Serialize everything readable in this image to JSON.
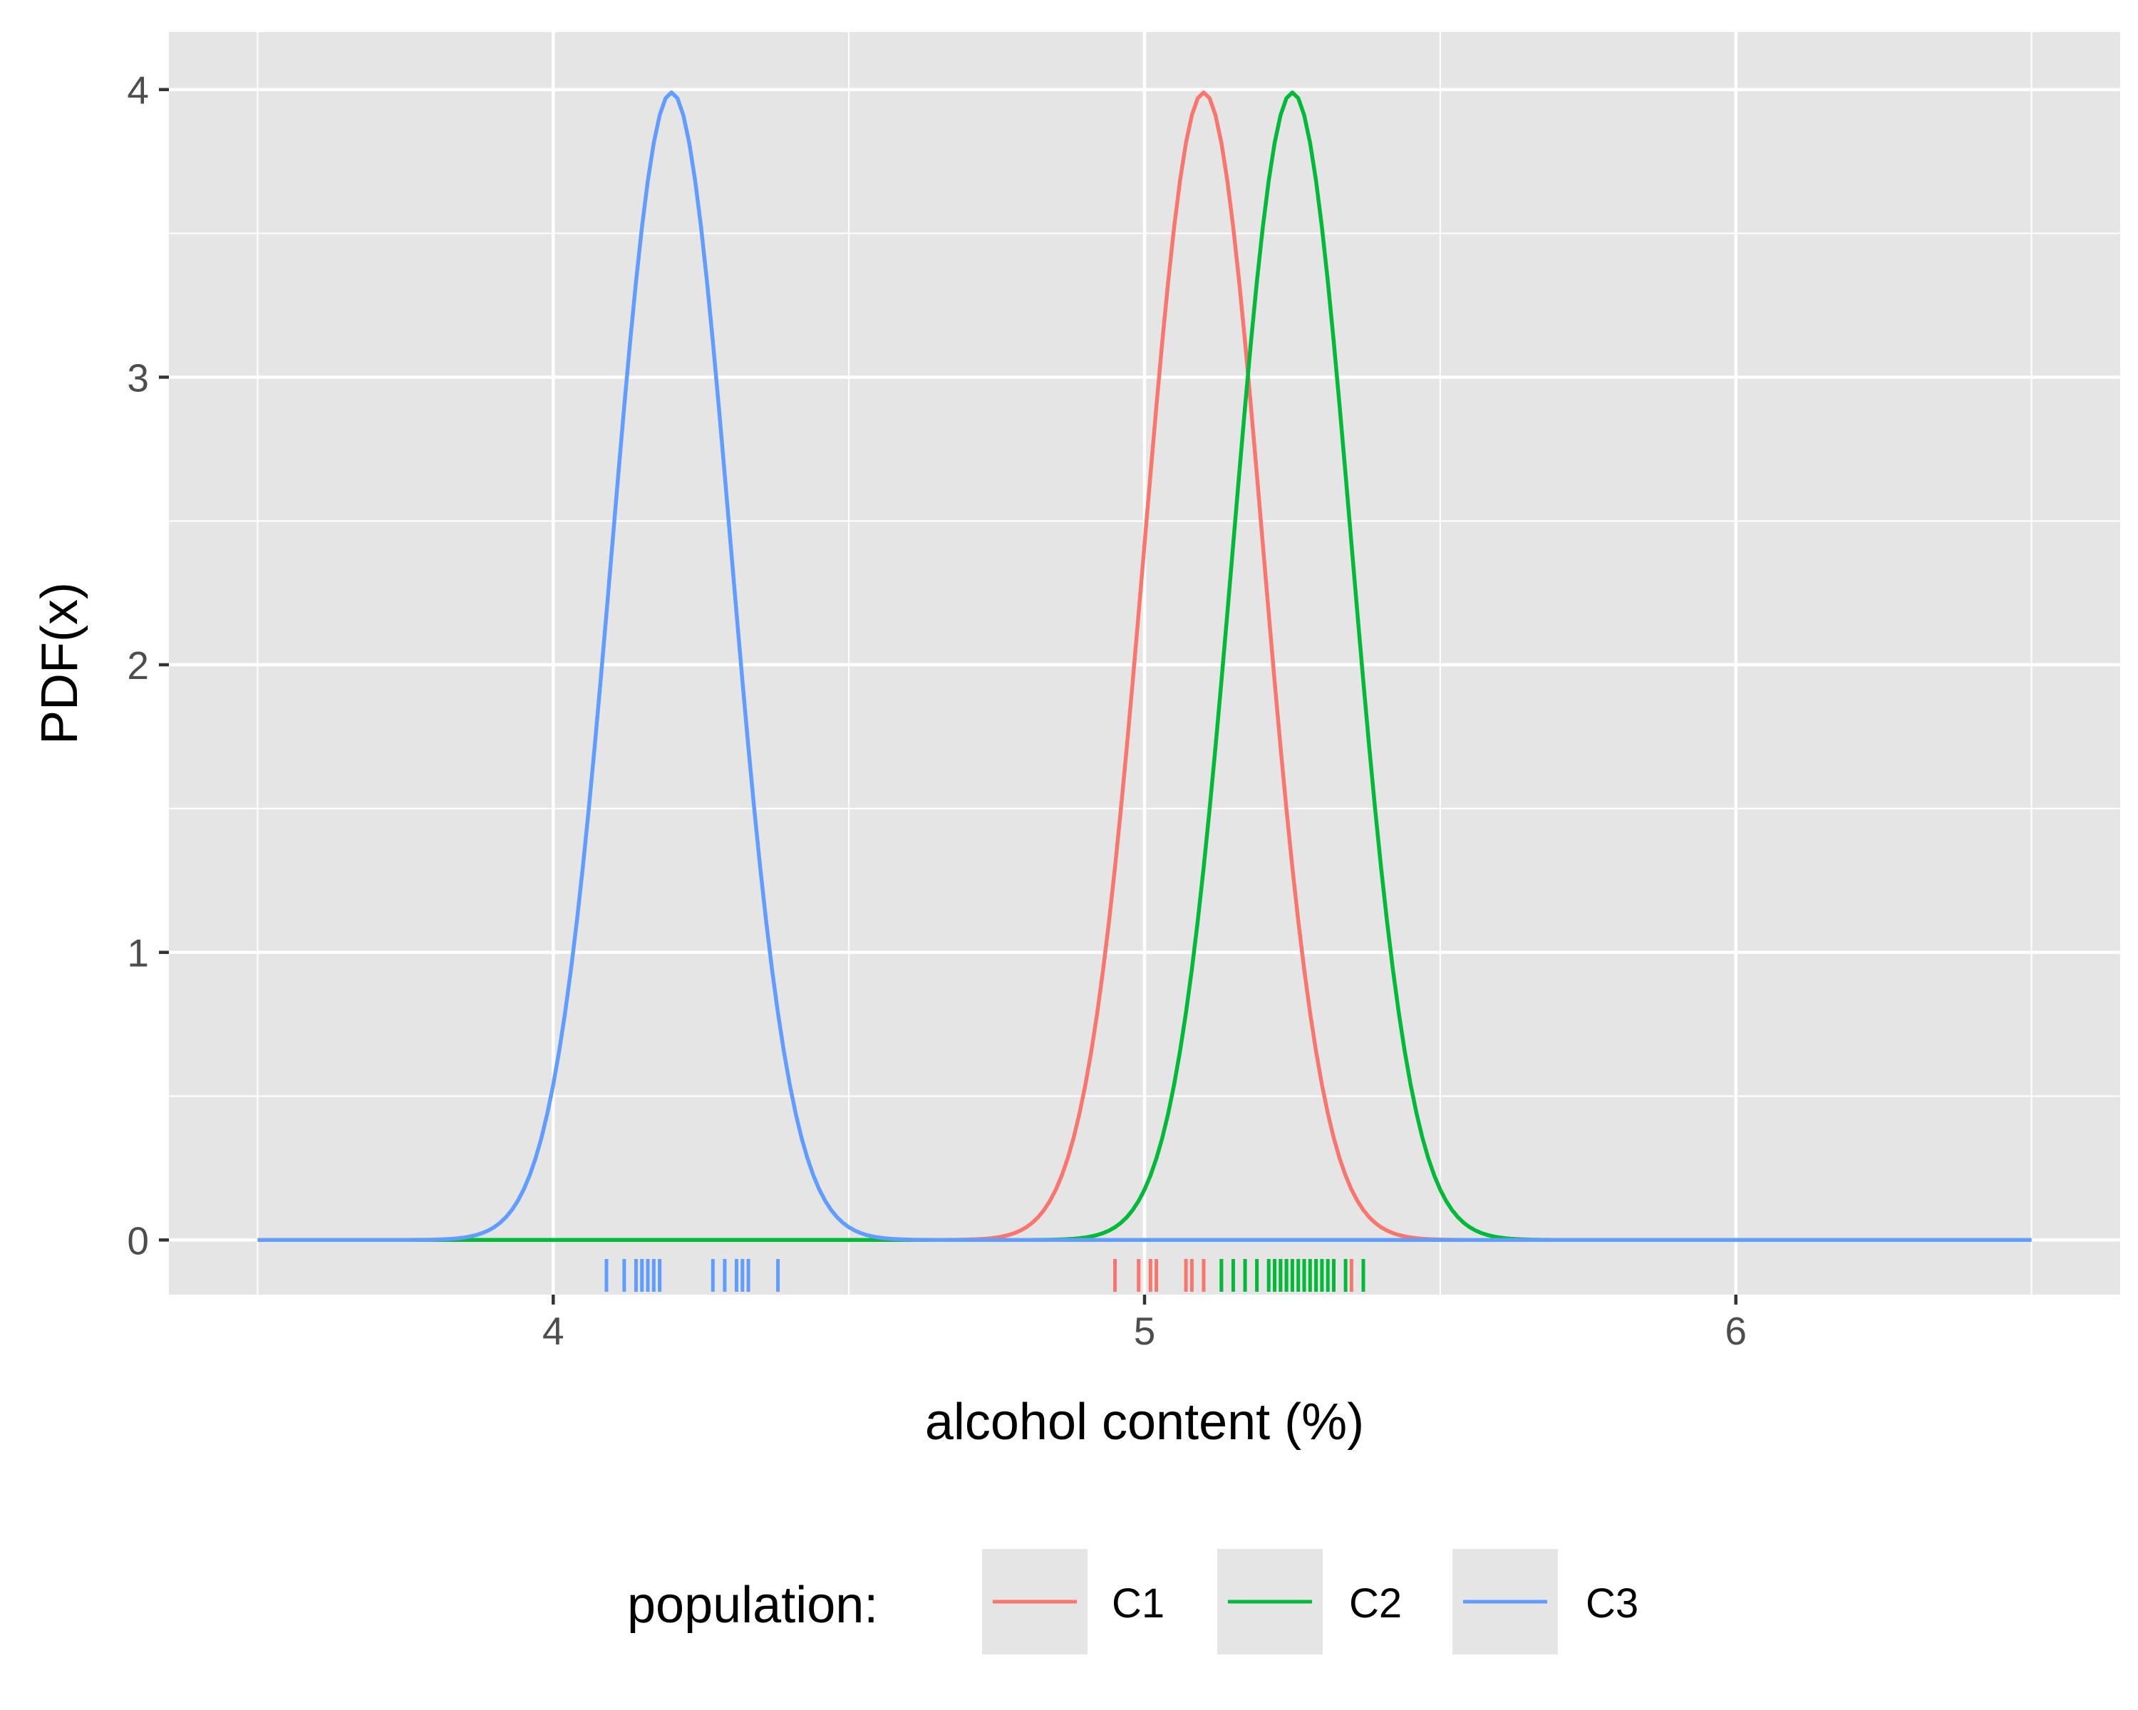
{
  "chart_data": {
    "type": "line",
    "title": "",
    "xlabel": "alcohol content (%)",
    "ylabel": "PDF(x)",
    "xlim": [
      3.35,
      6.65
    ],
    "ylim": [
      -0.19,
      4.2
    ],
    "x_domain": [
      3.5,
      6.5
    ],
    "x_major_ticks": [
      4,
      5,
      6
    ],
    "x_tick_labels": [
      "4",
      "5",
      "6"
    ],
    "x_minor_ticks": [
      3.5,
      4.5,
      5.5,
      6.5
    ],
    "y_major_ticks": [
      0,
      1,
      2,
      3,
      4
    ],
    "y_tick_labels": [
      "0",
      "1",
      "2",
      "3",
      "4"
    ],
    "y_minor_ticks": [
      0.5,
      1.5,
      2.5,
      3.5
    ],
    "grid": true,
    "panel_background": "#e5e5e5",
    "legend": {
      "title": "population:",
      "position": "bottom",
      "entries": [
        "C1",
        "C2",
        "C3"
      ]
    },
    "series": [
      {
        "name": "C1",
        "color": "#f8766d",
        "distribution": "normal",
        "mean": 5.1,
        "sd": 0.1,
        "peak": 3.99,
        "rug": [
          4.95,
          4.99,
          5.01,
          5.02,
          5.07,
          5.08,
          5.1,
          5.13,
          5.17,
          5.23,
          5.24,
          5.35
        ]
      },
      {
        "name": "C2",
        "color": "#00ba38",
        "distribution": "normal",
        "mean": 5.25,
        "sd": 0.1,
        "peak": 3.99,
        "rug": [
          5.13,
          5.15,
          5.17,
          5.19,
          5.21,
          5.22,
          5.23,
          5.24,
          5.25,
          5.26,
          5.27,
          5.28,
          5.29,
          5.3,
          5.31,
          5.32,
          5.34,
          5.37
        ]
      },
      {
        "name": "C3",
        "color": "#619cff",
        "distribution": "normal",
        "mean": 4.2,
        "sd": 0.1,
        "peak": 3.99,
        "rug": [
          4.09,
          4.12,
          4.14,
          4.15,
          4.16,
          4.17,
          4.18,
          4.27,
          4.29,
          4.31,
          4.32,
          4.33,
          4.38
        ]
      }
    ]
  }
}
